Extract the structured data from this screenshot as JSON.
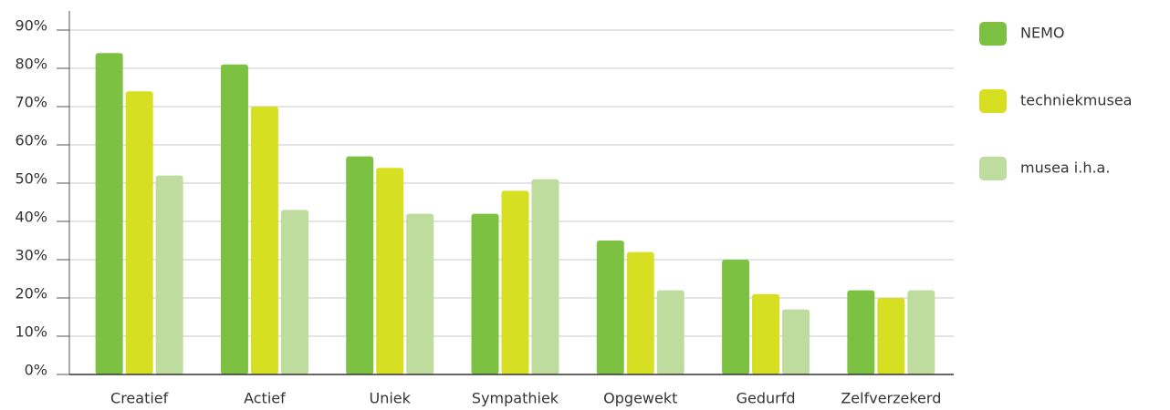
{
  "chart_data": {
    "type": "bar",
    "categories": [
      "Creatief",
      "Actief",
      "Uniek",
      "Sympathiek",
      "Opgewekt",
      "Gedurfd",
      "Zelfverzekerd"
    ],
    "series": [
      {
        "name": "NEMO",
        "color": "#7dc142",
        "values": [
          84,
          81,
          57,
          42,
          35,
          30,
          22
        ]
      },
      {
        "name": "techniekmusea",
        "color": "#d6df22",
        "values": [
          74,
          70,
          54,
          48,
          32,
          21,
          20
        ]
      },
      {
        "name": "musea i.h.a.",
        "color": "#bedc9e",
        "values": [
          52,
          43,
          42,
          51,
          22,
          17,
          22
        ]
      }
    ],
    "ylim": [
      0,
      90
    ],
    "yticks": [
      {
        "value": 0,
        "label": "0%"
      },
      {
        "value": 10,
        "label": "10%"
      },
      {
        "value": 20,
        "label": "20%"
      },
      {
        "value": 30,
        "label": "30%"
      },
      {
        "value": 40,
        "label": "40%"
      },
      {
        "value": 50,
        "label": "50%"
      },
      {
        "value": 60,
        "label": "60%"
      },
      {
        "value": 70,
        "label": "70%"
      },
      {
        "value": 80,
        "label": "80%"
      },
      {
        "value": 90,
        "label": "90%"
      }
    ],
    "grid": true,
    "legend": "right"
  }
}
